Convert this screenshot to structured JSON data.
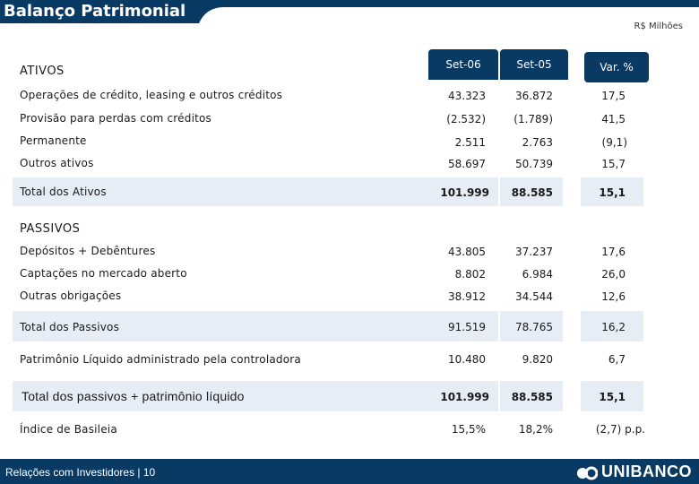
{
  "header": {
    "title": "Balanço Patrimonial",
    "unit": "R$ Milhões"
  },
  "columns": [
    "Set-06",
    "Set-05",
    "Var. %"
  ],
  "ativos": {
    "heading": "ATIVOS",
    "rows": [
      {
        "label": "Operações de crédito,  leasing e outros créditos",
        "values": [
          "43.323",
          "36.872",
          "17,5"
        ]
      },
      {
        "label": "Provisão para perdas com créditos",
        "values": [
          "(2.532)",
          "(1.789)",
          "41,5"
        ]
      },
      {
        "label": "Permanente",
        "values": [
          "2.511",
          "2.763",
          "(9,1)"
        ]
      },
      {
        "label": "Outros ativos",
        "values": [
          "58.697",
          "50.739",
          "15,7"
        ]
      }
    ],
    "total": {
      "label": "Total dos Ativos",
      "values": [
        "101.999",
        "88.585",
        "15,1"
      ]
    }
  },
  "passivos": {
    "heading": "PASSIVOS",
    "rows": [
      {
        "label": "Depósitos + Debêntures",
        "values": [
          "43.805",
          "37.237",
          "17,6"
        ]
      },
      {
        "label": "Captações no mercado aberto",
        "values": [
          "8.802",
          "6.984",
          "26,0"
        ]
      },
      {
        "label": "Outras obrigações",
        "values": [
          "38.912",
          "34.544",
          "12,6"
        ]
      }
    ],
    "total": {
      "label": "Total dos Passivos",
      "values": [
        "91.519",
        "78.765",
        "16,2"
      ]
    }
  },
  "patrimonio": {
    "label": "Patrimônio Líquido administrado pela controladora",
    "values": [
      "10.480",
      "9.820",
      "6,7"
    ]
  },
  "grand_total": {
    "label": "Total dos passivos + patrimônio líquido",
    "values": [
      "101.999",
      "88.585",
      "15,1"
    ]
  },
  "basileia": {
    "label": "Índice de Basileia",
    "values": [
      "15,5%",
      "18,2%",
      "(2,7) p.p."
    ]
  },
  "footer": {
    "text": "Relações com Investidores | 10",
    "logo": "UNIBANCO"
  },
  "colors": {
    "brand_navy": "#083a63",
    "band": "#e6edf5"
  }
}
